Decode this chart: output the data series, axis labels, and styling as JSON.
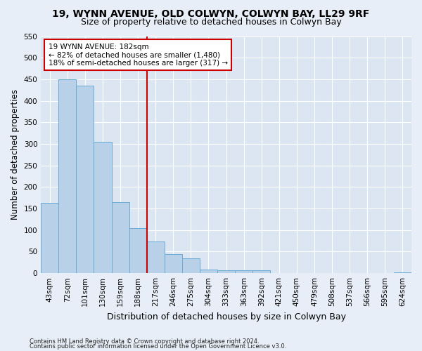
{
  "title1": "19, WYNN AVENUE, OLD COLWYN, COLWYN BAY, LL29 9RF",
  "title2": "Size of property relative to detached houses in Colwyn Bay",
  "xlabel": "Distribution of detached houses by size in Colwyn Bay",
  "ylabel": "Number of detached properties",
  "footer1": "Contains HM Land Registry data © Crown copyright and database right 2024.",
  "footer2": "Contains public sector information licensed under the Open Government Licence v3.0.",
  "categories": [
    "43sqm",
    "72sqm",
    "101sqm",
    "130sqm",
    "159sqm",
    "188sqm",
    "217sqm",
    "246sqm",
    "275sqm",
    "304sqm",
    "333sqm",
    "363sqm",
    "392sqm",
    "421sqm",
    "450sqm",
    "479sqm",
    "508sqm",
    "537sqm",
    "566sqm",
    "595sqm",
    "624sqm"
  ],
  "values": [
    163,
    450,
    435,
    305,
    165,
    105,
    73,
    44,
    35,
    9,
    7,
    7,
    6,
    1,
    0,
    0,
    0,
    0,
    0,
    0,
    2
  ],
  "bar_color": "#b8d0e8",
  "bar_edge_color": "#6aaad4",
  "vline_x": 5.5,
  "vline_color": "#cc0000",
  "annotation_text": "19 WYNN AVENUE: 182sqm\n← 82% of detached houses are smaller (1,480)\n18% of semi-detached houses are larger (317) →",
  "annotation_box_color": "#ffffff",
  "annotation_box_edge_color": "#cc0000",
  "ylim": [
    0,
    550
  ],
  "yticks": [
    0,
    50,
    100,
    150,
    200,
    250,
    300,
    350,
    400,
    450,
    500,
    550
  ],
  "fig_bg_color": "#e8eef7",
  "plot_bg_color": "#dce6f2",
  "title_fontsize": 10,
  "subtitle_fontsize": 9,
  "axis_label_fontsize": 8.5,
  "tick_fontsize": 7.5,
  "footer_fontsize": 6
}
